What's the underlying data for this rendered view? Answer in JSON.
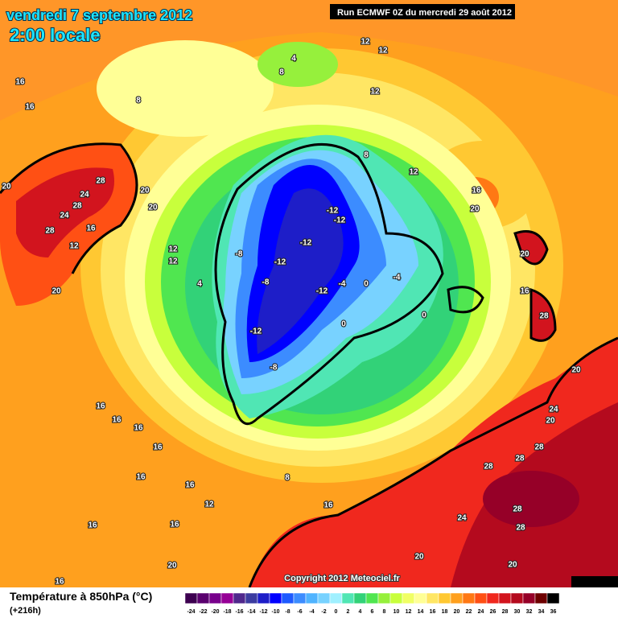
{
  "header": {
    "date": "vendredi 7 septembre 2012",
    "time": "2:00 locale",
    "run": "Run ECMWF 0Z du mercredi 29 août 2012"
  },
  "copyright": "Copyright 2012 Meteociel.fr",
  "legend": {
    "title": "Température à 850hPa (°C)",
    "subtitle": "(+216h)",
    "ticks": [
      -24,
      -22,
      -20,
      -18,
      -16,
      -14,
      -12,
      -10,
      -8,
      -6,
      -4,
      -2,
      0,
      2,
      4,
      6,
      8,
      10,
      12,
      14,
      16,
      18,
      20,
      22,
      24,
      26,
      28,
      30,
      32,
      34,
      36
    ],
    "colors": [
      "#3d0050",
      "#5a006e",
      "#78008c",
      "#960096",
      "#50288c",
      "#3c3ca0",
      "#1e1ec8",
      "#0000ff",
      "#1e5aff",
      "#3c8cff",
      "#50b4ff",
      "#78d2ff",
      "#a0f0ff",
      "#50e6b4",
      "#32d278",
      "#50e650",
      "#96f03c",
      "#c8ff3c",
      "#f0ff64",
      "#ffff96",
      "#ffe664",
      "#ffc832",
      "#ffa01e",
      "#ff7814",
      "#ff5014",
      "#f0281e",
      "#d2141e",
      "#b40a1e",
      "#960028",
      "#6e0000",
      "#000000"
    ]
  },
  "contour_labels": [
    16,
    16,
    20,
    24,
    28,
    28,
    24,
    28,
    20,
    20,
    16,
    12,
    20,
    12,
    12,
    4,
    -8,
    -12,
    -12,
    -12,
    -12,
    -8,
    -12,
    -4,
    0,
    -12,
    -8,
    0,
    0,
    -4,
    8,
    4,
    12,
    12,
    12,
    8,
    8,
    12,
    16,
    20,
    20,
    16,
    28,
    20,
    24,
    20,
    28,
    28,
    28,
    28,
    28,
    24,
    20,
    20,
    16,
    16,
    16,
    16,
    16,
    16,
    12,
    16,
    16,
    16,
    8,
    16,
    20
  ]
}
